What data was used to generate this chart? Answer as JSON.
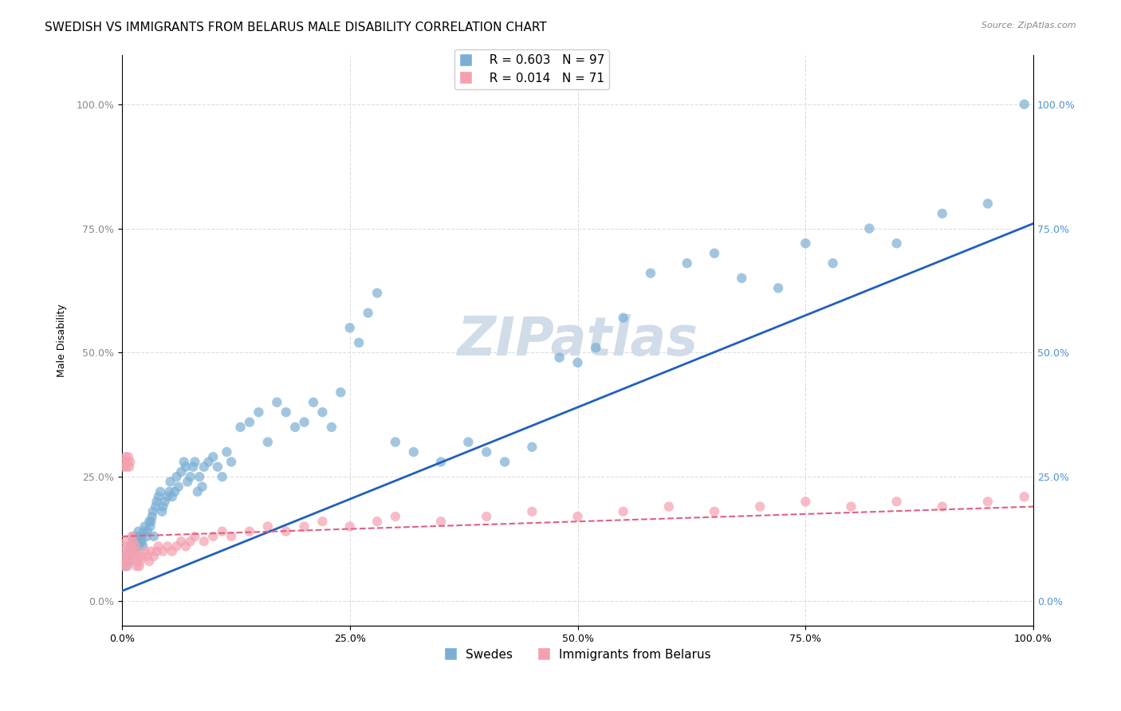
{
  "title": "SWEDISH VS IMMIGRANTS FROM BELARUS MALE DISABILITY CORRELATION CHART",
  "source": "Source: ZipAtlas.com",
  "xlabel": "",
  "ylabel": "Male Disability",
  "xlim": [
    0,
    1
  ],
  "ylim": [
    -0.05,
    1.15
  ],
  "watermark": "ZIPatlas",
  "legend_swedes": "Swedes",
  "legend_immigrants": "Immigrants from Belarus",
  "swedes_R": "R = 0.603",
  "swedes_N": "N = 97",
  "immigrants_R": "R = 0.014",
  "immigrants_N": "N = 71",
  "swedes_color": "#7bafd4",
  "immigrants_color": "#f4a0b0",
  "swedes_line_color": "#2060c0",
  "immigrants_line_color": "#e06080",
  "swedes_x": [
    0.004,
    0.006,
    0.008,
    0.009,
    0.01,
    0.012,
    0.013,
    0.014,
    0.015,
    0.016,
    0.017,
    0.018,
    0.019,
    0.02,
    0.021,
    0.022,
    0.023,
    0.024,
    0.025,
    0.027,
    0.028,
    0.03,
    0.031,
    0.032,
    0.033,
    0.034,
    0.035,
    0.037,
    0.038,
    0.04,
    0.042,
    0.044,
    0.045,
    0.047,
    0.05,
    0.052,
    0.053,
    0.055,
    0.058,
    0.06,
    0.062,
    0.065,
    0.068,
    0.07,
    0.072,
    0.075,
    0.078,
    0.08,
    0.083,
    0.085,
    0.088,
    0.09,
    0.095,
    0.1,
    0.105,
    0.11,
    0.115,
    0.12,
    0.13,
    0.14,
    0.15,
    0.16,
    0.17,
    0.18,
    0.19,
    0.2,
    0.21,
    0.22,
    0.23,
    0.24,
    0.25,
    0.26,
    0.27,
    0.28,
    0.3,
    0.32,
    0.35,
    0.38,
    0.4,
    0.42,
    0.45,
    0.48,
    0.5,
    0.52,
    0.55,
    0.58,
    0.62,
    0.65,
    0.68,
    0.72,
    0.75,
    0.78,
    0.82,
    0.85,
    0.9,
    0.95,
    0.99
  ],
  "swedes_y": [
    0.07,
    0.09,
    0.08,
    0.1,
    0.11,
    0.12,
    0.13,
    0.1,
    0.11,
    0.12,
    0.13,
    0.14,
    0.11,
    0.12,
    0.13,
    0.12,
    0.11,
    0.14,
    0.15,
    0.13,
    0.14,
    0.16,
    0.15,
    0.16,
    0.17,
    0.18,
    0.13,
    0.19,
    0.2,
    0.21,
    0.22,
    0.18,
    0.19,
    0.2,
    0.21,
    0.22,
    0.24,
    0.21,
    0.22,
    0.25,
    0.23,
    0.26,
    0.28,
    0.27,
    0.24,
    0.25,
    0.27,
    0.28,
    0.22,
    0.25,
    0.23,
    0.27,
    0.28,
    0.29,
    0.27,
    0.25,
    0.3,
    0.28,
    0.35,
    0.36,
    0.38,
    0.32,
    0.4,
    0.38,
    0.35,
    0.36,
    0.4,
    0.38,
    0.35,
    0.42,
    0.55,
    0.52,
    0.58,
    0.62,
    0.32,
    0.3,
    0.28,
    0.32,
    0.3,
    0.28,
    0.31,
    0.49,
    0.48,
    0.51,
    0.57,
    0.66,
    0.68,
    0.7,
    0.65,
    0.63,
    0.72,
    0.68,
    0.75,
    0.72,
    0.78,
    0.8,
    1.0
  ],
  "immigrants_x": [
    0.0,
    0.001,
    0.002,
    0.003,
    0.004,
    0.005,
    0.006,
    0.007,
    0.008,
    0.009,
    0.01,
    0.011,
    0.012,
    0.013,
    0.014,
    0.015,
    0.016,
    0.017,
    0.018,
    0.019,
    0.02,
    0.022,
    0.025,
    0.028,
    0.03,
    0.032,
    0.035,
    0.038,
    0.04,
    0.045,
    0.05,
    0.055,
    0.06,
    0.065,
    0.07,
    0.075,
    0.08,
    0.09,
    0.1,
    0.11,
    0.12,
    0.14,
    0.16,
    0.18,
    0.2,
    0.22,
    0.25,
    0.28,
    0.3,
    0.35,
    0.4,
    0.45,
    0.5,
    0.55,
    0.6,
    0.65,
    0.7,
    0.75,
    0.8,
    0.85,
    0.9,
    0.95,
    0.99,
    0.002,
    0.003,
    0.004,
    0.005,
    0.006,
    0.007,
    0.008,
    0.009
  ],
  "immigrants_y": [
    0.07,
    0.08,
    0.09,
    0.1,
    0.11,
    0.12,
    0.07,
    0.08,
    0.09,
    0.1,
    0.11,
    0.13,
    0.12,
    0.09,
    0.1,
    0.11,
    0.07,
    0.08,
    0.09,
    0.07,
    0.08,
    0.09,
    0.1,
    0.09,
    0.08,
    0.1,
    0.09,
    0.1,
    0.11,
    0.1,
    0.11,
    0.1,
    0.11,
    0.12,
    0.11,
    0.12,
    0.13,
    0.12,
    0.13,
    0.14,
    0.13,
    0.14,
    0.15,
    0.14,
    0.15,
    0.16,
    0.15,
    0.16,
    0.17,
    0.16,
    0.17,
    0.18,
    0.17,
    0.18,
    0.19,
    0.18,
    0.19,
    0.2,
    0.19,
    0.2,
    0.19,
    0.2,
    0.21,
    0.27,
    0.28,
    0.29,
    0.27,
    0.28,
    0.29,
    0.27,
    0.28
  ],
  "swedes_line_x": [
    0.0,
    1.0
  ],
  "swedes_line_y": [
    0.02,
    0.76
  ],
  "immigrants_line_x": [
    0.0,
    1.0
  ],
  "immigrants_line_y": [
    0.13,
    0.19
  ],
  "yticks": [
    0.0,
    0.25,
    0.5,
    0.75,
    1.0
  ],
  "ytick_labels": [
    "0.0%",
    "25.0%",
    "50.0%",
    "75.0%",
    "100.0%"
  ],
  "xticks": [
    0.0,
    0.25,
    0.5,
    0.75,
    1.0
  ],
  "xtick_labels": [
    "0.0%",
    "25.0%",
    "50.0%",
    "75.0%",
    "100.0%"
  ],
  "grid_color": "#dddddd",
  "background_color": "#ffffff",
  "title_fontsize": 11,
  "axis_label_fontsize": 9,
  "tick_fontsize": 9,
  "legend_fontsize": 11,
  "watermark_fontsize": 48,
  "watermark_color": "#d0dce8",
  "right_ytick_color_swedes": "#5090d0",
  "right_ytick_color_immigrants": "#5090d0"
}
